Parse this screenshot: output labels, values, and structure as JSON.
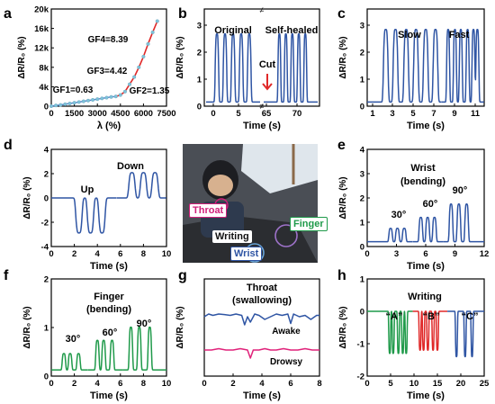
{
  "colors": {
    "blue": "#2f55a4",
    "red": "#e02828",
    "green": "#1f9a4a",
    "magenta": "#e0227a",
    "fit_blue": "#4a7bd0",
    "point_cyan": "#7ec3d9"
  },
  "photo": {
    "labels": {
      "throat": "Throat",
      "finger": "Finger",
      "writing": "Writing",
      "wrist": "Wrist"
    },
    "label_colors": {
      "throat": "#d0207a",
      "finger": "#1f9a4a",
      "writing": "#111111",
      "wrist": "#2f55a4"
    }
  },
  "chart_data": [
    {
      "panel": "a",
      "type": "line",
      "xlabel": "λ (%)",
      "ylabel": "ΔR/R₀ (%)",
      "xlim": [
        0,
        7500
      ],
      "ylim": [
        0,
        20000
      ],
      "xticks": [
        "0",
        "1500",
        "3000",
        "4500",
        "6000",
        "7500"
      ],
      "yticks": [
        "0",
        "4k",
        "8k",
        "12k",
        "16k",
        "20k"
      ],
      "annotations": [
        "GF1=0.63",
        "GF2=1.35",
        "GF3=4.42",
        "GF4=8.39"
      ],
      "series": [
        {
          "x": [
            0,
            300,
            600,
            900,
            1200,
            1500,
            1800,
            2100,
            2400,
            2700,
            3000,
            3300,
            3600,
            3900,
            4200,
            4500,
            4800,
            5100,
            5400,
            5700,
            6000,
            6300,
            6600,
            6900
          ],
          "values": [
            0,
            150,
            250,
            400,
            550,
            700,
            850,
            1000,
            1150,
            1300,
            1450,
            1600,
            1750,
            1900,
            2000,
            2300,
            3000,
            4500,
            6000,
            8000,
            10200,
            12800,
            15200,
            17500
          ]
        }
      ]
    },
    {
      "panel": "b",
      "type": "line",
      "xlabel": "Time (s)",
      "ylabel": "ΔR/R₀ (%)",
      "xlim": [
        0,
        80
      ],
      "ylim": [
        0,
        3
      ],
      "xticks": [
        "0",
        "5",
        "65",
        "70"
      ],
      "yticks": [
        "0",
        "1",
        "2",
        "3"
      ],
      "annotations": [
        "Original",
        "Self-healed",
        "Cut"
      ],
      "series": [
        {
          "name": "Original",
          "pulse_centers": [
            1.6,
            2.8,
            4.0,
            5.2,
            6.4
          ],
          "peak": 2.4,
          "baseline": 0.08
        },
        {
          "name": "Self-healed",
          "pulse_centers": [
            67.4,
            68.6,
            69.8,
            71.0,
            72.2
          ],
          "peak": 2.4,
          "baseline": 0.08
        }
      ]
    },
    {
      "panel": "c",
      "type": "line",
      "xlabel": "Time (s)",
      "ylabel": "ΔR/R₀ (%)",
      "xlim": [
        0,
        12
      ],
      "ylim": [
        0,
        3
      ],
      "xticks": [
        "1",
        "3",
        "5",
        "7",
        "9",
        "11"
      ],
      "yticks": [
        "0",
        "1",
        "2",
        "3"
      ],
      "annotations": [
        "Slow",
        "Fast"
      ],
      "series": [
        {
          "name": "Slow",
          "pulse_centers": [
            1.9,
            2.9,
            4.0,
            5.0,
            6.0,
            7.0
          ],
          "peak": 2.55,
          "baseline": 0.08
        },
        {
          "name": "Fast",
          "pulse_centers": [
            8.3,
            9.0,
            9.6,
            10.3,
            10.9,
            11.3
          ],
          "peak": 2.55,
          "baseline": 0.08
        }
      ]
    },
    {
      "panel": "d",
      "type": "line",
      "xlabel": "Time (s)",
      "ylabel": "ΔR/R₀ (%)",
      "xlim": [
        0,
        10
      ],
      "ylim": [
        -5,
        5
      ],
      "xticks": [
        "0",
        "2",
        "4",
        "6",
        "8",
        "10"
      ],
      "yticks": [
        "-4",
        "-2",
        "0",
        "2",
        "4"
      ],
      "annotations": [
        "Up",
        "Down"
      ],
      "series": [
        {
          "name": "Up",
          "pulse_centers": [
            2.4,
            3.4,
            4.4
          ],
          "peak": -3.6,
          "baseline": 0
        },
        {
          "name": "Down",
          "pulse_centers": [
            7.0,
            8.0,
            9.0
          ],
          "peak": 2.6,
          "baseline": 0
        }
      ]
    },
    {
      "panel": "e",
      "type": "line",
      "title": "Wrist (bending)",
      "xlabel": "Time (s)",
      "ylabel": "ΔR/R₀ (%)",
      "xlim": [
        0,
        12
      ],
      "ylim": [
        0,
        4
      ],
      "xticks": [
        "0",
        "3",
        "6",
        "9",
        "12"
      ],
      "yticks": [
        "0",
        "1",
        "2",
        "3",
        "4"
      ],
      "annotations": [
        "30°",
        "60°",
        "90°"
      ],
      "series": [
        {
          "name": "30°",
          "pulse_centers": [
            2.4,
            3.1,
            3.8
          ],
          "peak": 0.75,
          "baseline": 0.2
        },
        {
          "name": "60°",
          "pulse_centers": [
            5.5,
            6.2,
            6.9
          ],
          "peak": 1.2,
          "baseline": 0.2
        },
        {
          "name": "90°",
          "pulse_centers": [
            8.6,
            9.4,
            10.2
          ],
          "peak": 1.75,
          "baseline": 0.2
        }
      ]
    },
    {
      "panel": "f",
      "type": "line",
      "title": "Finger (bending)",
      "xlabel": "Time (s)",
      "ylabel": "ΔR/R₀ (%)",
      "xlim": [
        0,
        11
      ],
      "ylim": [
        0,
        2
      ],
      "xticks": [
        "0",
        "2",
        "4",
        "6",
        "8",
        "10"
      ],
      "yticks": [
        "0",
        "1",
        "2"
      ],
      "annotations": [
        "30°",
        "60°",
        "90°"
      ],
      "series": [
        {
          "name": "30°",
          "pulse_centers": [
            1.2,
            1.8,
            2.6
          ],
          "peak": 0.45,
          "baseline": 0.08
        },
        {
          "name": "60°",
          "pulse_centers": [
            4.4,
            5.0,
            5.8
          ],
          "peak": 0.75,
          "baseline": 0.08
        },
        {
          "name": "90°",
          "pulse_centers": [
            7.6,
            8.4,
            9.4
          ],
          "peak": 1.05,
          "baseline": 0.08
        }
      ]
    },
    {
      "panel": "g",
      "type": "line",
      "title": "Throat (swallowing)",
      "xlabel": "Time (s)",
      "ylabel": "ΔR/R₀ (%)",
      "xlim": [
        0,
        8
      ],
      "xticks": [
        "0",
        "2",
        "4",
        "6",
        "8"
      ],
      "annotations": [
        "Awake",
        "Drowsy"
      ],
      "series": [
        {
          "name": "Awake",
          "x": [
            0,
            0.3,
            0.6,
            1.0,
            1.4,
            1.8,
            2.2,
            2.6,
            2.8,
            3.0,
            3.2,
            3.5,
            3.8,
            4.2,
            4.6,
            5.0,
            5.4,
            5.8,
            6.0,
            6.2,
            6.6,
            7.0,
            7.4,
            7.8,
            8.0
          ],
          "values": [
            0.0,
            0.1,
            0.05,
            0.1,
            0.08,
            0.05,
            0.1,
            0.05,
            -0.3,
            0.0,
            -0.2,
            0.1,
            0.05,
            -0.1,
            0.0,
            0.1,
            0.05,
            0.1,
            -0.25,
            0.1,
            0.0,
            0.05,
            -0.1,
            0.05,
            0.05
          ]
        },
        {
          "name": "Drowsy",
          "x": [
            0,
            0.5,
            1.0,
            1.5,
            2.0,
            2.5,
            3.0,
            3.2,
            3.4,
            3.8,
            4.2,
            4.6,
            5.0,
            5.5,
            6.0,
            6.5,
            7.0,
            7.5,
            8.0
          ],
          "values": [
            -0.1,
            -0.1,
            -0.05,
            -0.1,
            -0.1,
            -0.05,
            -0.1,
            -0.4,
            -0.1,
            -0.1,
            -0.05,
            -0.1,
            -0.1,
            -0.05,
            -0.1,
            -0.1,
            -0.05,
            -0.1,
            -0.1
          ]
        }
      ]
    },
    {
      "panel": "h",
      "type": "line",
      "title": "Writing",
      "xlabel": "Time (s)",
      "ylabel": "ΔR/R₀ (%)",
      "xlim": [
        0,
        27
      ],
      "ylim": [
        -2,
        1
      ],
      "xticks": [
        "0",
        "5",
        "10",
        "15",
        "20",
        "25"
      ],
      "yticks": [
        "-2",
        "-1",
        "0",
        "1"
      ],
      "annotations": [
        "“A”",
        "“B”",
        "“C”"
      ],
      "series": [
        {
          "name": "“A”",
          "pulse_centers": [
            5.2,
            6.0,
            7.2,
            8.2,
            9.0
          ],
          "peak": -1.3,
          "baseline": 0
        },
        {
          "name": "“B”",
          "pulse_centers": [
            12.2,
            13.0,
            14.0,
            15.2,
            16.2
          ],
          "peak": -1.2,
          "baseline": 0
        },
        {
          "name": "“C”",
          "pulse_centers": [
            20.6,
            22.6,
            24.2
          ],
          "peak": -1.4,
          "baseline": 0
        }
      ]
    }
  ]
}
